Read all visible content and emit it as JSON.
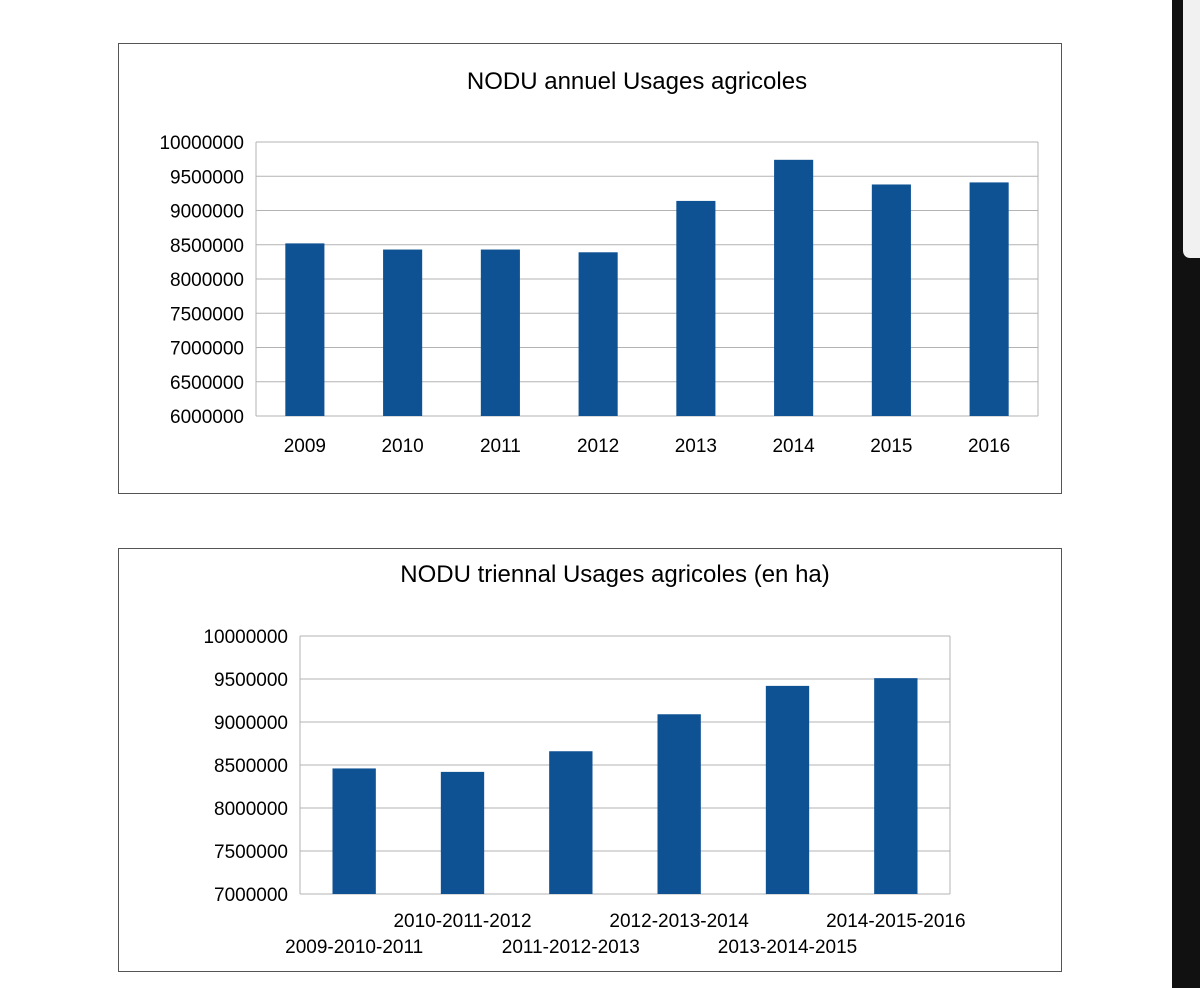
{
  "colors": {
    "bar": "#0f5294",
    "grid": "#b3b3b3",
    "frame": "#555555",
    "text": "#000000"
  },
  "chart_data": [
    {
      "type": "bar",
      "title": "NODU annuel Usages agricoles",
      "xlabel": "",
      "ylabel": "",
      "categories": [
        "2009",
        "2010",
        "2011",
        "2012",
        "2013",
        "2014",
        "2015",
        "2016"
      ],
      "values": [
        8520000,
        8430000,
        8430000,
        8390000,
        9140000,
        9740000,
        9380000,
        9410000
      ],
      "ylim": [
        6000000,
        10000000
      ],
      "yticks": [
        "6000000",
        "6500000",
        "7000000",
        "7500000",
        "8000000",
        "8500000",
        "9000000",
        "9500000",
        "10000000"
      ],
      "grid": true,
      "legend": "none"
    },
    {
      "type": "bar",
      "title": "NODU triennal Usages agricoles (en ha)",
      "xlabel": "",
      "ylabel": "",
      "categories": [
        "2009-2010-2011",
        "2010-2011-2012",
        "2011-2012-2013",
        "2012-2013-2014",
        "2013-2014-2015",
        "2014-2015-2016"
      ],
      "values": [
        8460000,
        8420000,
        8660000,
        9090000,
        9420000,
        9510000
      ],
      "ylim": [
        7000000,
        10000000
      ],
      "yticks": [
        "7000000",
        "7500000",
        "8000000",
        "8500000",
        "9000000",
        "9500000",
        "10000000"
      ],
      "grid": true,
      "legend": "none"
    }
  ]
}
